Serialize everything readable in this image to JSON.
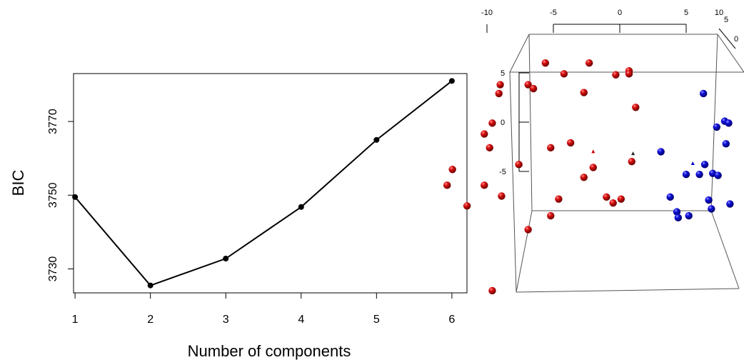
{
  "chart_data": [
    {
      "type": "line",
      "title": "",
      "xlabel": "Number of components",
      "ylabel": "BIC",
      "x": [
        1,
        2,
        3,
        4,
        5,
        6
      ],
      "series": [
        {
          "values": [
            3749.5,
            3725.5,
            3732.8,
            3746.8,
            3765.0,
            3781.0
          ]
        }
      ],
      "xticks": [
        "1",
        "2",
        "3",
        "4",
        "5",
        "6"
      ],
      "yticks": [
        "3730",
        "3750",
        "3770"
      ],
      "xlim": [
        0.98,
        6.2
      ],
      "ylim": [
        3723.5,
        3783.0
      ],
      "grid": false,
      "color": "#000000"
    },
    {
      "type": "scatter",
      "title": "",
      "projection": "3d perspective box",
      "top_axis_ticks": [
        "-10",
        "-5",
        "0",
        "5",
        "10"
      ],
      "side_axis_ticks": [
        "10",
        "5",
        "0"
      ],
      "left_axis_ticks": [
        "5",
        "0",
        "-5"
      ],
      "top_axis_values": [
        -10,
        -5,
        0,
        5,
        10
      ],
      "left_axis_values": [
        5,
        0,
        -5
      ],
      "colors": {
        "cluster1": "#cc0000",
        "cluster2": "#0000cc",
        "centroid": "#222222"
      },
      "series": [
        {
          "cluster": "1",
          "color": "#cc0000",
          "points": [
            [
              -5.6,
              6.0
            ],
            [
              -2.3,
              6.0
            ],
            [
              0.7,
              5.2
            ],
            [
              -4.2,
              4.9
            ],
            [
              -0.3,
              4.8
            ],
            [
              0.7,
              4.9
            ],
            [
              -9.0,
              3.8
            ],
            [
              -6.9,
              3.8
            ],
            [
              -6.5,
              3.4
            ],
            [
              -9.1,
              2.9
            ],
            [
              -2.7,
              3.0
            ],
            [
              1.2,
              1.5
            ],
            [
              -9.6,
              -0.1
            ],
            [
              -10.2,
              -1.2
            ],
            [
              -9.8,
              -2.6
            ],
            [
              -3.7,
              -2.1
            ],
            [
              -5.2,
              -2.6
            ],
            [
              -7.6,
              -4.3
            ],
            [
              -2.0,
              -4.6
            ],
            [
              0.9,
              -4.0
            ],
            [
              -2.7,
              -5.6
            ],
            [
              -12.6,
              -4.8
            ],
            [
              -10.2,
              -6.4
            ],
            [
              -13.0,
              -6.4
            ],
            [
              -8.9,
              -7.5
            ],
            [
              -4.6,
              -7.8
            ],
            [
              -1.0,
              -7.6
            ],
            [
              -0.5,
              -8.2
            ],
            [
              0.1,
              -7.8
            ],
            [
              -11.5,
              -8.5
            ],
            [
              -5.2,
              -9.5
            ],
            [
              -6.9,
              -10.9
            ],
            [
              -9.6,
              -17.1
            ]
          ]
        },
        {
          "cluster": "2",
          "color": "#0000cc",
          "points": [
            [
              6.3,
              2.9
            ],
            [
              7.9,
              0.1
            ],
            [
              7.3,
              -0.5
            ],
            [
              8.2,
              -0.1
            ],
            [
              11.8,
              -0.6
            ],
            [
              8.0,
              -2.2
            ],
            [
              11.0,
              -2.1
            ],
            [
              12.5,
              -2.8
            ],
            [
              10.7,
              -3.3
            ],
            [
              3.1,
              -3.0
            ],
            [
              6.4,
              -4.3
            ],
            [
              5.0,
              -5.3
            ],
            [
              6.0,
              -5.3
            ],
            [
              7.0,
              -5.2
            ],
            [
              7.4,
              -5.4
            ],
            [
              9.9,
              -7.0
            ],
            [
              11.2,
              -7.2
            ],
            [
              3.8,
              -7.6
            ],
            [
              6.7,
              -7.9
            ],
            [
              6.9,
              -8.8
            ],
            [
              8.3,
              -8.3
            ],
            [
              4.3,
              -9.1
            ],
            [
              5.2,
              -9.5
            ],
            [
              4.4,
              -9.7
            ]
          ]
        },
        {
          "cluster": "centroids",
          "color": "#222222",
          "points": [
            [
              -2.0,
              -3.0
            ],
            [
              1.0,
              -3.2
            ],
            [
              5.5,
              -4.2
            ]
          ]
        }
      ]
    }
  ]
}
